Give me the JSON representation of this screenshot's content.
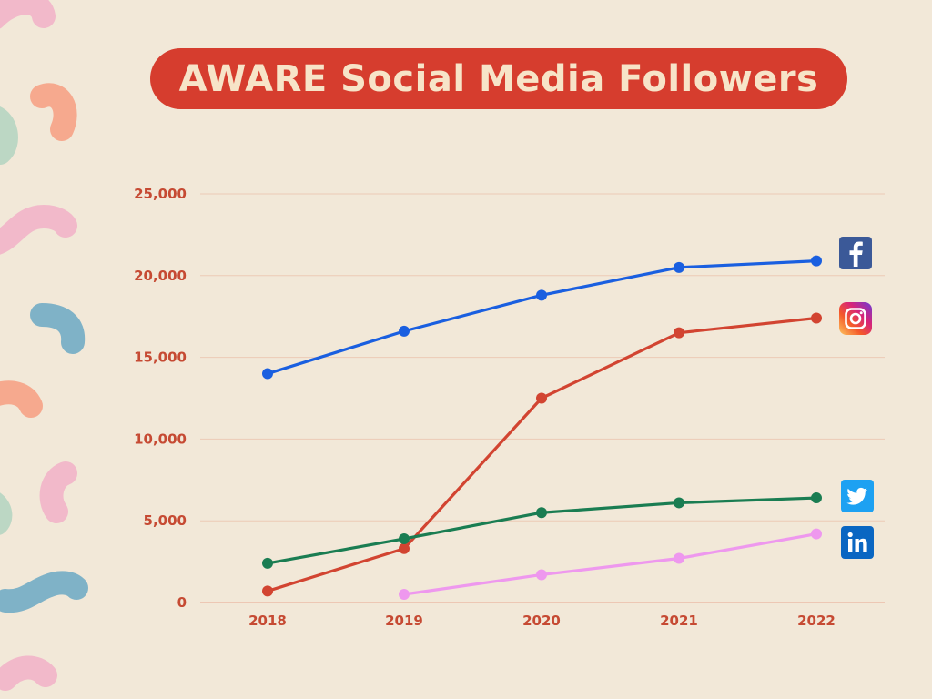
{
  "title": "AWARE Social Media Followers",
  "colors": {
    "background": "#f2e8d8",
    "title_pill": "#d63d2e",
    "title_text": "#f7e4c8",
    "tick_text": "#c64a33"
  },
  "chart_data": {
    "type": "line",
    "title": "AWARE Social Media Followers",
    "xlabel": "",
    "ylabel": "",
    "categories": [
      "2018",
      "2019",
      "2020",
      "2021",
      "2022"
    ],
    "y_ticks": [
      "0",
      "5,000",
      "10,000",
      "15,000",
      "20,000",
      "25,000"
    ],
    "ylim": [
      0,
      25000
    ],
    "grid": true,
    "legend": "icons at right end of each line",
    "series": [
      {
        "icon": "facebook-icon",
        "color": "#1a5fe0",
        "values": [
          14000,
          16600,
          18800,
          20500,
          20900
        ]
      },
      {
        "icon": "instagram-icon",
        "color": "#d24431",
        "values": [
          700,
          3300,
          12500,
          16500,
          17400
        ]
      },
      {
        "icon": "twitter-icon",
        "color": "#1a7d52",
        "values": [
          2400,
          3900,
          5500,
          6100,
          6400
        ]
      },
      {
        "icon": "linkedin-icon",
        "color": "#ee98ee",
        "values": [
          null,
          500,
          1700,
          2700,
          4200
        ]
      }
    ]
  }
}
